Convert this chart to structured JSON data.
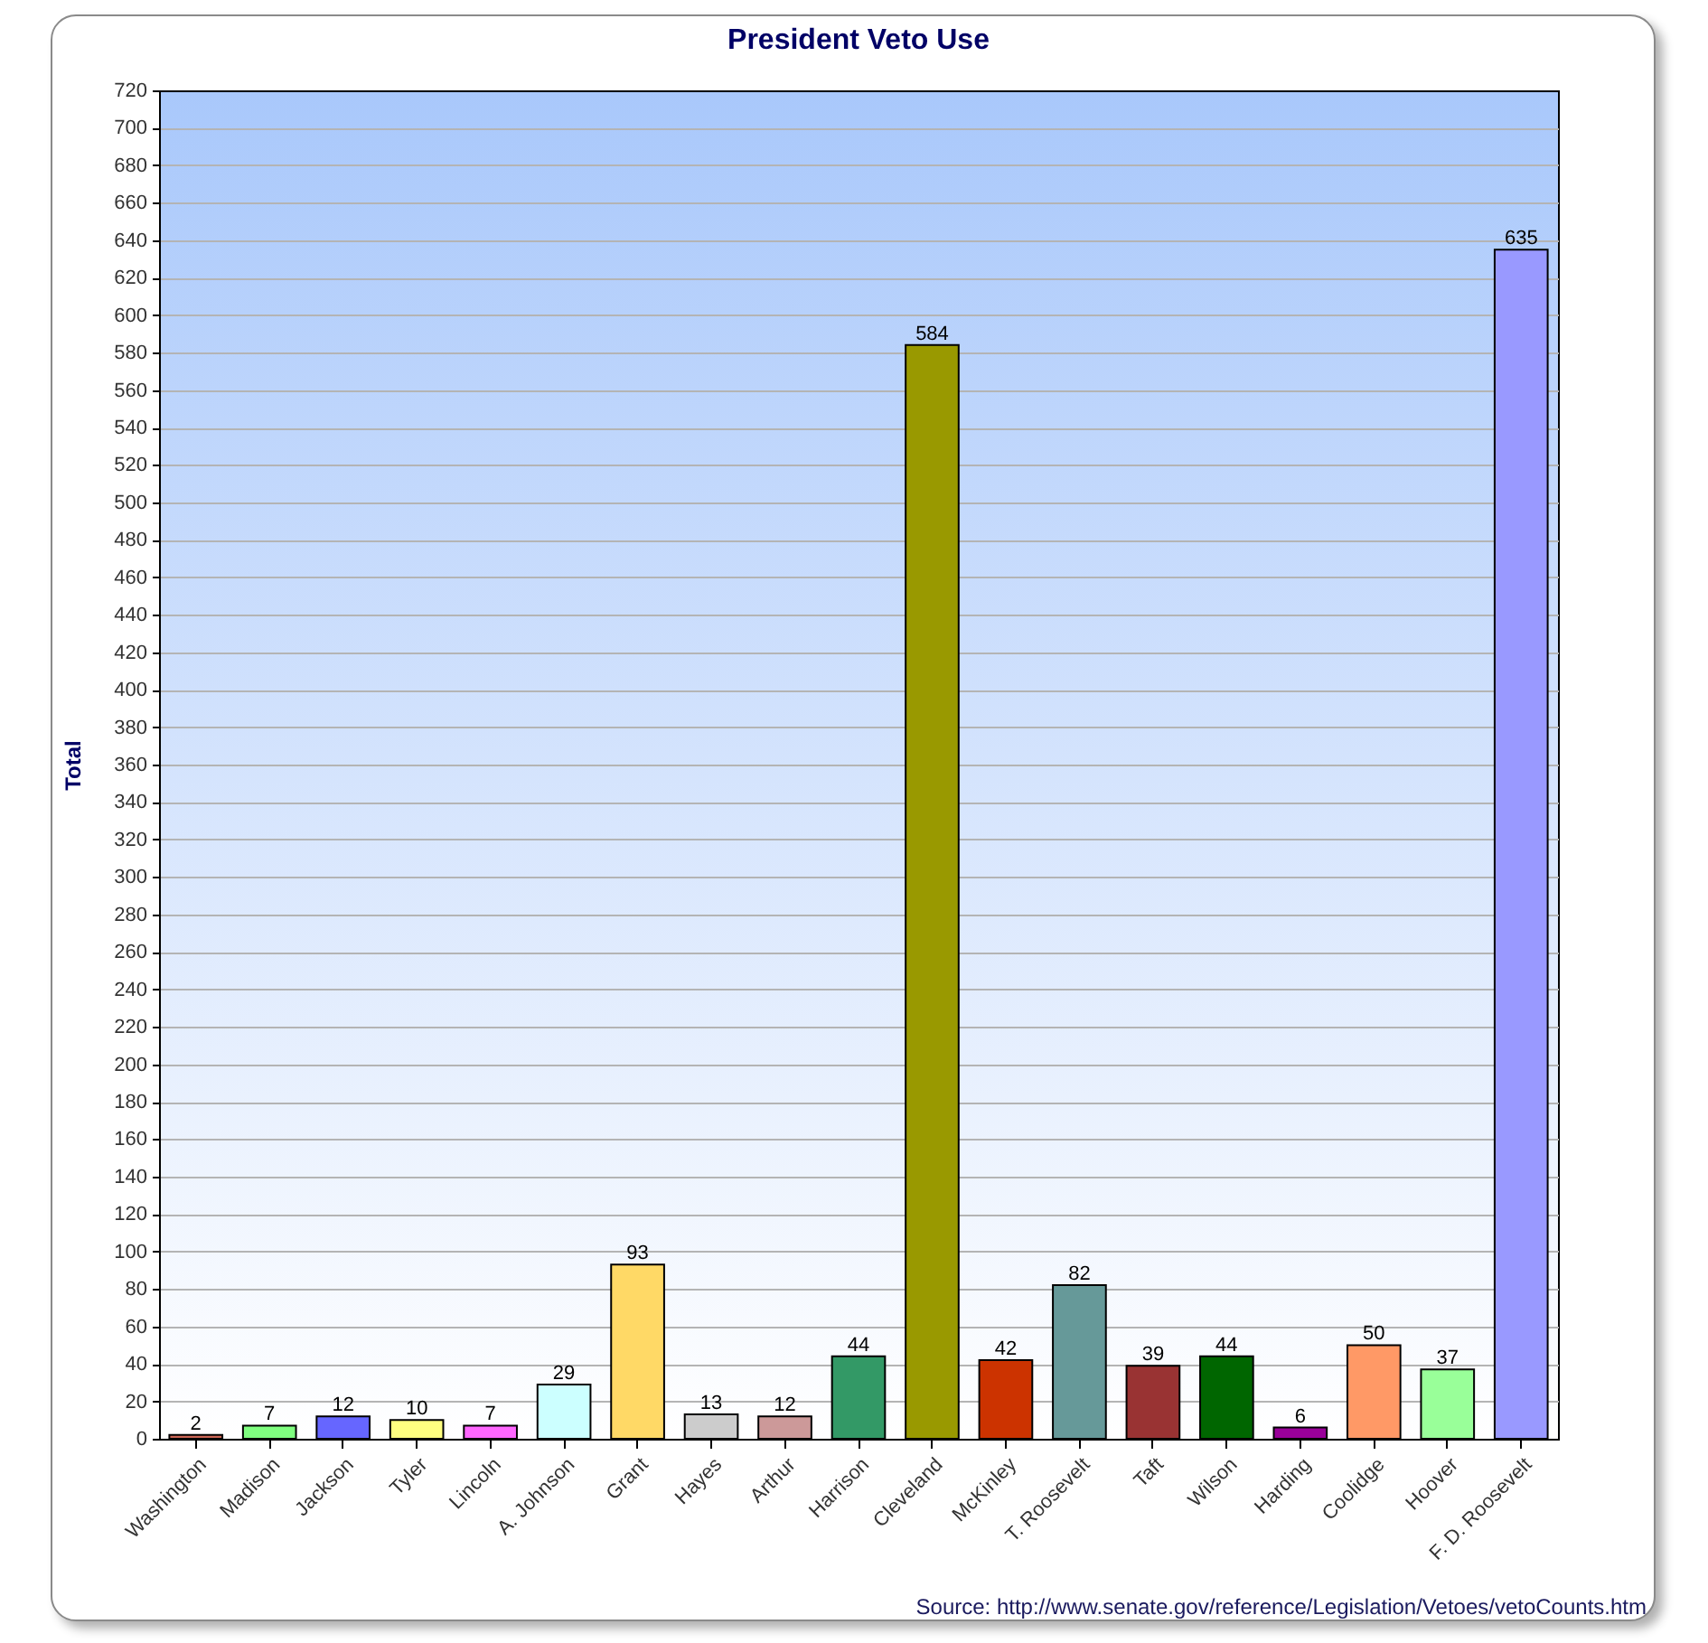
{
  "chart_data": {
    "type": "bar",
    "title": "President Veto Use",
    "ylabel": "Total",
    "categories": [
      "Washington",
      "Madison",
      "Jackson",
      "Tyler",
      "Lincoln",
      "A. Johnson",
      "Grant",
      "Hayes",
      "Arthur",
      "Harrison",
      "Cleveland",
      "McKinley",
      "T. Roosevelt",
      "Taft",
      "Wilson",
      "Harding",
      "Coolidge",
      "Hoover",
      "F. D. Roosevelt"
    ],
    "values": [
      2,
      7,
      12,
      10,
      7,
      29,
      93,
      13,
      12,
      44,
      584,
      42,
      82,
      39,
      44,
      6,
      50,
      37,
      635
    ],
    "colors": [
      "#cc6655",
      "#80ff80",
      "#6666ff",
      "#ffff80",
      "#ff66ff",
      "#ccffff",
      "#ffd966",
      "#cccccc",
      "#cc9999",
      "#339966",
      "#999900",
      "#cc3300",
      "#669999",
      "#993333",
      "#006600",
      "#990099",
      "#ff9966",
      "#99ff99",
      "#9999ff"
    ],
    "ylim": [
      0,
      720
    ],
    "yticks": [
      0,
      20,
      40,
      60,
      80,
      100,
      120,
      140,
      160,
      180,
      200,
      220,
      240,
      260,
      280,
      300,
      320,
      340,
      360,
      380,
      400,
      420,
      440,
      460,
      480,
      500,
      520,
      540,
      560,
      580,
      600,
      620,
      640,
      660,
      680,
      700,
      720
    ],
    "grid": "y",
    "data_labels": true,
    "annotations": [
      "Source: http://www.senate.gov/reference/Legislation/Vetoes/vetoCounts.htm"
    ]
  }
}
